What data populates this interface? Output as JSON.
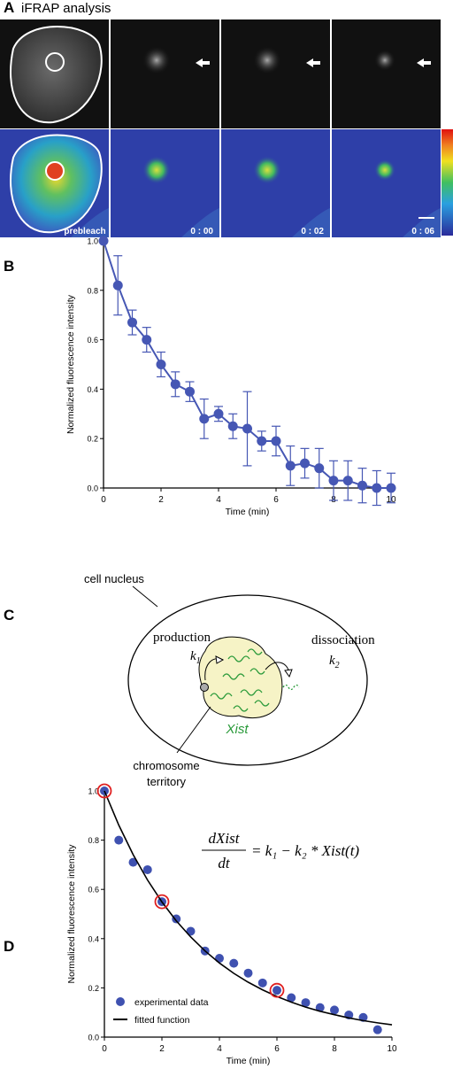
{
  "panel_labels": [
    "A",
    "B",
    "C",
    "D"
  ],
  "panel_a": {
    "title": "iFRAP analysis",
    "frame_labels": [
      "prebleach",
      "0 : 00",
      "0 : 02",
      "0 : 06"
    ]
  },
  "chart_data": [
    {
      "type": "line",
      "x_label": "Time (min)",
      "y_label": "Normalized fluorescence intensity",
      "x": [
        0,
        0.5,
        1,
        1.5,
        2,
        2.5,
        3,
        3.5,
        4,
        4.5,
        5,
        5.5,
        6,
        6.5,
        7,
        7.5,
        8,
        8.5,
        9,
        9.5,
        10
      ],
      "values": [
        1.0,
        0.82,
        0.67,
        0.6,
        0.5,
        0.42,
        0.39,
        0.28,
        0.3,
        0.25,
        0.24,
        0.19,
        0.19,
        0.09,
        0.1,
        0.08,
        0.03,
        0.03,
        0.01,
        0.0,
        0.0
      ],
      "errors": [
        0,
        0.12,
        0.05,
        0.05,
        0.05,
        0.05,
        0.04,
        0.08,
        0.03,
        0.05,
        0.15,
        0.04,
        0.06,
        0.08,
        0.06,
        0.08,
        0.08,
        0.08,
        0.07,
        0.07,
        0.06
      ],
      "color": "#4657b4",
      "xlim": [
        0,
        10
      ],
      "ylim": [
        0,
        1
      ],
      "xticks": [
        0,
        2,
        4,
        6,
        8,
        10
      ],
      "yticks": [
        {
          "value": 0,
          "label": "0.0"
        },
        0.2,
        0.4,
        0.6,
        0.8,
        {
          "value": 1,
          "label": "1.0"
        }
      ]
    },
    {
      "type": "scatter",
      "x_label": "Time (min)",
      "y_label": "Normalized fluorescence intensity",
      "series": [
        {
          "name": "experimental data",
          "color": "#3f51b0",
          "style": "points",
          "x": [
            0,
            0.5,
            1,
            1.5,
            2,
            2.5,
            3,
            3.5,
            4,
            4.5,
            5,
            5.5,
            6,
            6.5,
            7,
            7.5,
            8,
            8.5,
            9,
            9.5
          ],
          "values": [
            1.0,
            0.8,
            0.71,
            0.68,
            0.55,
            0.48,
            0.43,
            0.35,
            0.32,
            0.3,
            0.26,
            0.22,
            0.19,
            0.16,
            0.14,
            0.12,
            0.11,
            0.09,
            0.08,
            0.03
          ]
        },
        {
          "name": "fitted function",
          "color": "#000000",
          "style": "line",
          "x": [
            0,
            0.5,
            1,
            1.5,
            2,
            2.5,
            3,
            3.5,
            4,
            4.5,
            5,
            5.5,
            6,
            6.5,
            7,
            7.5,
            8,
            8.5,
            9,
            9.5,
            10
          ],
          "values": [
            1.0,
            0.861,
            0.741,
            0.638,
            0.549,
            0.472,
            0.407,
            0.35,
            0.301,
            0.259,
            0.223,
            0.192,
            0.165,
            0.142,
            0.122,
            0.105,
            0.091,
            0.078,
            0.067,
            0.058,
            0.05
          ]
        }
      ],
      "highlight_x": [
        0,
        2,
        6
      ],
      "highlight_color": "#e02020",
      "equation": {
        "numerator": "dXist",
        "denominator": "dt",
        "rhs": "= k₁ − k₂ * Xist(t)"
      },
      "xlim": [
        0,
        10
      ],
      "ylim": [
        0,
        1
      ],
      "xticks": [
        0,
        2,
        4,
        6,
        8,
        10
      ],
      "yticks": [
        {
          "value": 0,
          "label": "0.0"
        },
        0.2,
        0.4,
        0.6,
        0.8,
        {
          "value": 1,
          "label": "1.0"
        }
      ]
    }
  ],
  "panel_c": {
    "nucleus_label": "cell nucleus",
    "production": "production",
    "k1": {
      "symbol": "k",
      "subscript": "1"
    },
    "dissociation": "dissociation",
    "k2": {
      "symbol": "k",
      "subscript": "2"
    },
    "rna": "Xist",
    "territory_label": [
      "chromosome",
      "territory"
    ]
  }
}
